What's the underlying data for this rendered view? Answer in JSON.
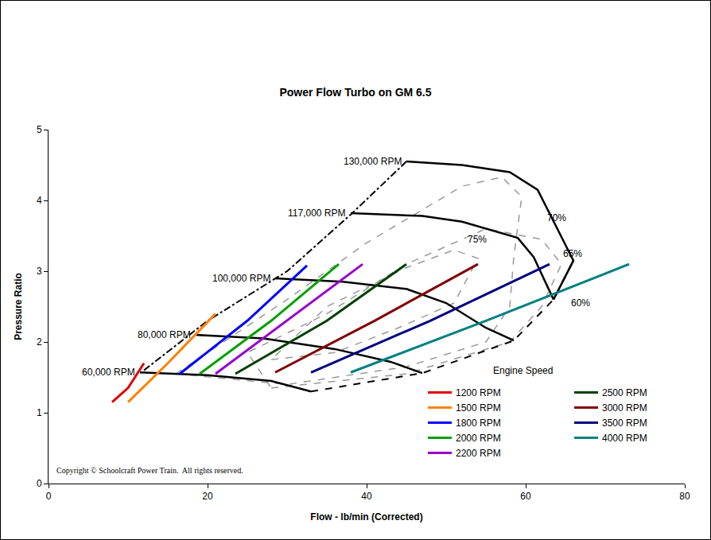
{
  "chart_data": {
    "type": "line",
    "title": "Power Flow Turbo on GM 6.5",
    "x_label": "Flow - lb/min (Corrected)",
    "y_label": "Pressure Ratio",
    "xlim": [
      0,
      80
    ],
    "ylim": [
      0,
      5
    ],
    "xticks": [
      0,
      20,
      40,
      60,
      80
    ],
    "yticks": [
      0,
      1,
      2,
      3,
      4,
      5
    ],
    "grid": false,
    "legend": "lower right",
    "legend_title": "Engine Speed",
    "footnote": "Copyright © Schoolcraft Power Train.  All rights reserved.",
    "speed_lines": [
      {
        "label": "60,000 RPM",
        "color": "#000000",
        "line_style": "solid",
        "x": [
          11.5,
          20,
          28,
          33
        ],
        "values": [
          1.57,
          1.53,
          1.45,
          1.3
        ]
      },
      {
        "label": "80,000 RPM",
        "color": "#000000",
        "line_style": "solid",
        "x": [
          18.5,
          27,
          36,
          43,
          47
        ],
        "values": [
          2.1,
          2.05,
          1.9,
          1.72,
          1.56
        ]
      },
      {
        "label": "100,000 RPM",
        "color": "#000000",
        "line_style": "solid",
        "x": [
          28.5,
          37,
          45,
          50,
          55,
          58.5
        ],
        "values": [
          2.9,
          2.85,
          2.75,
          2.55,
          2.2,
          2.02
        ]
      },
      {
        "label": "117,000 RPM",
        "color": "#000000",
        "line_style": "solid",
        "x": [
          38,
          47,
          52,
          55,
          59,
          61,
          63.5
        ],
        "values": [
          3.82,
          3.78,
          3.7,
          3.6,
          3.47,
          3.2,
          2.6
        ]
      },
      {
        "label": "130,000 RPM",
        "color": "#000000",
        "line_style": "solid",
        "x": [
          45,
          52,
          58,
          61.5,
          66,
          63.5
        ],
        "values": [
          4.55,
          4.5,
          4.4,
          4.15,
          3.15,
          2.6
        ]
      }
    ],
    "boundaries": [
      {
        "color": "#000000",
        "line_style": "dashdot",
        "x": [
          12,
          20,
          30,
          38,
          45
        ],
        "values": [
          1.6,
          2.3,
          3.0,
          3.8,
          4.55
        ]
      },
      {
        "color": "#000000",
        "line_style": "dash",
        "x": [
          33,
          47,
          58.5,
          63.5,
          66
        ],
        "values": [
          1.3,
          1.56,
          2.02,
          2.6,
          3.15
        ]
      }
    ],
    "efficiency_islands": [
      {
        "color": "#999999",
        "line_style": "dash",
        "x": [
          28,
          36,
          44,
          51,
          54,
          51,
          45,
          35,
          28
        ],
        "values": [
          1.75,
          1.85,
          2.2,
          2.55,
          3.18,
          3.3,
          3.05,
          2.5,
          1.75
        ]
      },
      {
        "color": "#999999",
        "line_style": "dash",
        "x": [
          16,
          30,
          40,
          52,
          57,
          59.5,
          58.5,
          58,
          55,
          45,
          30,
          16
        ],
        "values": [
          1.55,
          2.6,
          3.4,
          4.2,
          4.33,
          4.05,
          3.2,
          2.5,
          2.0,
          1.65,
          1.4,
          1.55
        ]
      },
      {
        "color": "#999999",
        "line_style": "dash",
        "x": [
          28,
          45,
          58,
          62,
          64.5,
          62,
          55,
          45,
          35,
          25,
          28
        ],
        "values": [
          1.35,
          1.55,
          2.0,
          2.5,
          3.1,
          3.45,
          3.6,
          3.1,
          2.4,
          1.85,
          1.35
        ]
      }
    ],
    "annotations": [
      {
        "text": "75%",
        "x": 52.5,
        "y": 3.45
      },
      {
        "text": "70%",
        "x": 62.5,
        "y": 3.75
      },
      {
        "text": "65%",
        "x": 64.5,
        "y": 3.25
      },
      {
        "text": "60%",
        "x": 65.5,
        "y": 2.55
      }
    ],
    "series": [
      {
        "name": "1200 RPM",
        "color": "#e00000",
        "x": [
          8,
          10,
          12
        ],
        "values": [
          1.15,
          1.35,
          1.7
        ]
      },
      {
        "name": "1500 RPM",
        "color": "#ff8000",
        "x": [
          10,
          15,
          21
        ],
        "values": [
          1.15,
          1.7,
          2.4
        ]
      },
      {
        "name": "1800 RPM",
        "color": "#0000ff",
        "x": [
          16.5,
          25,
          32.5
        ],
        "values": [
          1.55,
          2.3,
          3.08
        ]
      },
      {
        "name": "2000 RPM",
        "color": "#00a000",
        "x": [
          19,
          28,
          36.5
        ],
        "values": [
          1.55,
          2.3,
          3.1
        ]
      },
      {
        "name": "2200 RPM",
        "color": "#9900cc",
        "x": [
          21,
          30,
          39.5
        ],
        "values": [
          1.55,
          2.3,
          3.1
        ]
      },
      {
        "name": "2500 RPM",
        "color": "#004000",
        "x": [
          23.5,
          35,
          45
        ],
        "values": [
          1.55,
          2.3,
          3.1
        ]
      },
      {
        "name": "3000 RPM",
        "color": "#800000",
        "x": [
          28.5,
          41,
          54
        ],
        "values": [
          1.57,
          2.3,
          3.1
        ]
      },
      {
        "name": "3500 RPM",
        "color": "#000080",
        "x": [
          33,
          48,
          63
        ],
        "values": [
          1.57,
          2.3,
          3.1
        ]
      },
      {
        "name": "4000 RPM",
        "color": "#008080",
        "x": [
          38,
          55,
          73
        ],
        "values": [
          1.57,
          2.3,
          3.1
        ]
      }
    ]
  }
}
